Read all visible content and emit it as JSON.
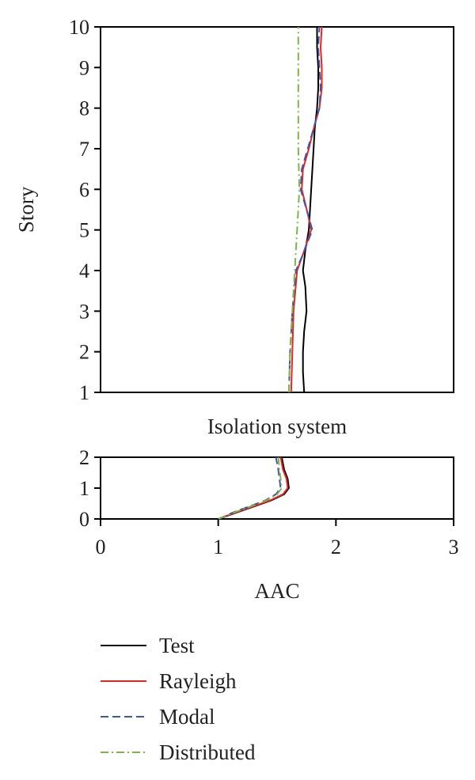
{
  "chart_data": [
    {
      "type": "line",
      "panel": "upper",
      "title": "",
      "xlabel": "",
      "ylabel": "Story",
      "xlim": [
        0,
        3
      ],
      "ylim": [
        1,
        10
      ],
      "yticks": [
        "1",
        "2",
        "3",
        "4",
        "5",
        "6",
        "7",
        "8",
        "9",
        "10"
      ],
      "grid": false,
      "series": [
        {
          "name": "Test",
          "color": "#000000",
          "style": "solid",
          "points": [
            [
              1.73,
              1
            ],
            [
              1.72,
              1.5
            ],
            [
              1.72,
              2
            ],
            [
              1.73,
              2.5
            ],
            [
              1.75,
              3
            ],
            [
              1.74,
              3.6
            ],
            [
              1.72,
              4
            ],
            [
              1.74,
              4.5
            ],
            [
              1.77,
              5
            ],
            [
              1.78,
              5.5
            ],
            [
              1.79,
              6
            ],
            [
              1.8,
              6.5
            ],
            [
              1.81,
              7
            ],
            [
              1.82,
              7.5
            ],
            [
              1.84,
              8
            ],
            [
              1.85,
              8.5
            ],
            [
              1.85,
              9
            ],
            [
              1.84,
              9.5
            ],
            [
              1.84,
              10
            ]
          ]
        },
        {
          "name": "Rayleigh",
          "color": "#e8251f",
          "style": "solid",
          "points": [
            [
              1.62,
              1
            ],
            [
              1.63,
              2
            ],
            [
              1.64,
              3
            ],
            [
              1.67,
              4
            ],
            [
              1.72,
              4.4
            ],
            [
              1.79,
              5
            ],
            [
              1.76,
              5.4
            ],
            [
              1.71,
              6
            ],
            [
              1.72,
              6.5
            ],
            [
              1.77,
              7
            ],
            [
              1.82,
              7.6
            ],
            [
              1.86,
              8
            ],
            [
              1.88,
              8.5
            ],
            [
              1.88,
              9
            ],
            [
              1.87,
              9.5
            ],
            [
              1.88,
              10
            ]
          ]
        },
        {
          "name": "Modal",
          "color": "#3c58a8",
          "style": "dashed",
          "points": [
            [
              1.6,
              1
            ],
            [
              1.61,
              2
            ],
            [
              1.63,
              3
            ],
            [
              1.66,
              4
            ],
            [
              1.72,
              4.4
            ],
            [
              1.8,
              5
            ],
            [
              1.76,
              5.4
            ],
            [
              1.7,
              6
            ],
            [
              1.71,
              6.5
            ],
            [
              1.76,
              7
            ],
            [
              1.82,
              7.6
            ],
            [
              1.86,
              8
            ],
            [
              1.87,
              8.5
            ],
            [
              1.86,
              9
            ],
            [
              1.85,
              9.5
            ],
            [
              1.86,
              10
            ]
          ]
        },
        {
          "name": "Distributed",
          "color": "#7ab648",
          "style": "dashdot",
          "points": [
            [
              1.6,
              1
            ],
            [
              1.61,
              2
            ],
            [
              1.63,
              3
            ],
            [
              1.65,
              4
            ],
            [
              1.67,
              5
            ],
            [
              1.69,
              6
            ],
            [
              1.68,
              7
            ],
            [
              1.68,
              8
            ],
            [
              1.68,
              9
            ],
            [
              1.68,
              10
            ]
          ]
        }
      ]
    },
    {
      "type": "line",
      "panel": "lower",
      "title": "Isolation system",
      "xlabel": "AAC",
      "ylabel": "",
      "xlim": [
        0,
        3
      ],
      "ylim": [
        0,
        2
      ],
      "xticks": [
        "0",
        "1",
        "2",
        "3"
      ],
      "yticks": [
        "0",
        "1",
        "2"
      ],
      "grid": false,
      "series": [
        {
          "name": "Test",
          "color": "#000000",
          "style": "solid",
          "points": [
            [
              1.0,
              0
            ],
            [
              1.15,
              0.2
            ],
            [
              1.3,
              0.4
            ],
            [
              1.45,
              0.6
            ],
            [
              1.56,
              0.8
            ],
            [
              1.6,
              1.0
            ],
            [
              1.59,
              1.3
            ],
            [
              1.56,
              1.6
            ],
            [
              1.54,
              2.0
            ]
          ]
        },
        {
          "name": "Rayleigh",
          "color": "#e8251f",
          "style": "solid",
          "points": [
            [
              1.0,
              0
            ],
            [
              1.14,
              0.2
            ],
            [
              1.29,
              0.4
            ],
            [
              1.44,
              0.6
            ],
            [
              1.55,
              0.8
            ],
            [
              1.59,
              1.0
            ],
            [
              1.58,
              1.3
            ],
            [
              1.55,
              1.6
            ],
            [
              1.53,
              2.0
            ]
          ]
        },
        {
          "name": "Modal",
          "color": "#3c58a8",
          "style": "dashed",
          "points": [
            [
              1.0,
              0
            ],
            [
              1.12,
              0.2
            ],
            [
              1.26,
              0.4
            ],
            [
              1.4,
              0.6
            ],
            [
              1.49,
              0.8
            ],
            [
              1.53,
              1.0
            ],
            [
              1.52,
              1.3
            ],
            [
              1.51,
              1.6
            ],
            [
              1.49,
              2.0
            ]
          ]
        },
        {
          "name": "Distributed",
          "color": "#7ab648",
          "style": "dashdot",
          "points": [
            [
              1.0,
              0
            ],
            [
              1.13,
              0.2
            ],
            [
              1.27,
              0.4
            ],
            [
              1.41,
              0.6
            ],
            [
              1.5,
              0.8
            ],
            [
              1.54,
              1.0
            ],
            [
              1.53,
              1.3
            ],
            [
              1.52,
              1.6
            ],
            [
              1.51,
              2.0
            ]
          ]
        }
      ]
    }
  ],
  "legend": {
    "placement": "bottom",
    "entries": [
      {
        "label": "Test",
        "color": "#000000",
        "style": "solid"
      },
      {
        "label": "Rayleigh",
        "color": "#e8251f",
        "style": "solid"
      },
      {
        "label": "Modal",
        "color": "#3c58a8",
        "style": "dashed"
      },
      {
        "label": "Distributed",
        "color": "#7ab648",
        "style": "dashdot"
      }
    ]
  }
}
